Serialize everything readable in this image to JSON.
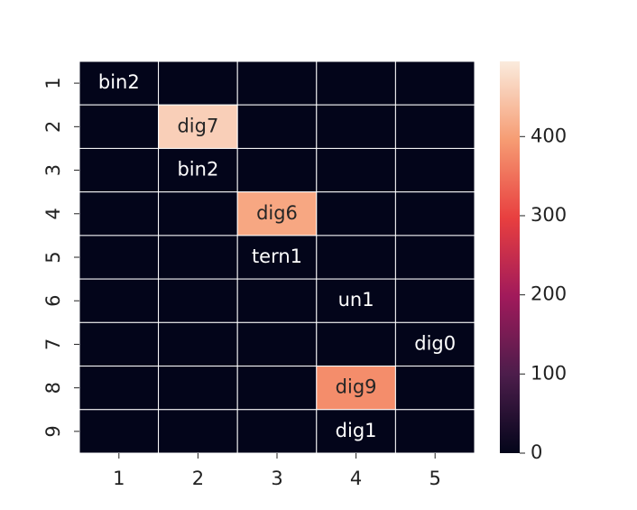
{
  "chart_data": {
    "type": "heatmap",
    "x_categories": [
      1,
      2,
      3,
      4,
      5
    ],
    "y_categories": [
      1,
      2,
      3,
      4,
      5,
      6,
      7,
      8,
      9
    ],
    "values": [
      [
        0,
        0,
        0,
        0,
        0
      ],
      [
        0,
        460,
        0,
        0,
        0
      ],
      [
        0,
        0,
        0,
        0,
        0
      ],
      [
        0,
        0,
        410,
        0,
        0
      ],
      [
        0,
        0,
        0,
        0,
        0
      ],
      [
        0,
        0,
        0,
        0,
        0
      ],
      [
        0,
        0,
        0,
        0,
        0
      ],
      [
        0,
        0,
        0,
        380,
        0
      ],
      [
        0,
        0,
        0,
        0,
        0
      ]
    ],
    "annotations": [
      [
        "bin2",
        null,
        null,
        null,
        null
      ],
      [
        null,
        "dig7",
        null,
        null,
        null
      ],
      [
        null,
        "bin2",
        null,
        null,
        null
      ],
      [
        null,
        null,
        "dig6",
        null,
        null
      ],
      [
        null,
        null,
        "tern1",
        null,
        null
      ],
      [
        null,
        null,
        null,
        "un1",
        null
      ],
      [
        null,
        null,
        null,
        null,
        "dig0"
      ],
      [
        null,
        null,
        null,
        "dig9",
        null
      ],
      [
        null,
        null,
        null,
        "dig1",
        null
      ]
    ],
    "clim": [
      0,
      495
    ],
    "cticks": [
      0,
      100,
      200,
      300,
      400
    ],
    "colormap": [
      "#03051a",
      "#4c1d4b",
      "#a11a5b",
      "#e83f3f",
      "#f69c73",
      "#faebdd"
    ],
    "grid_color": "#ffffff"
  }
}
